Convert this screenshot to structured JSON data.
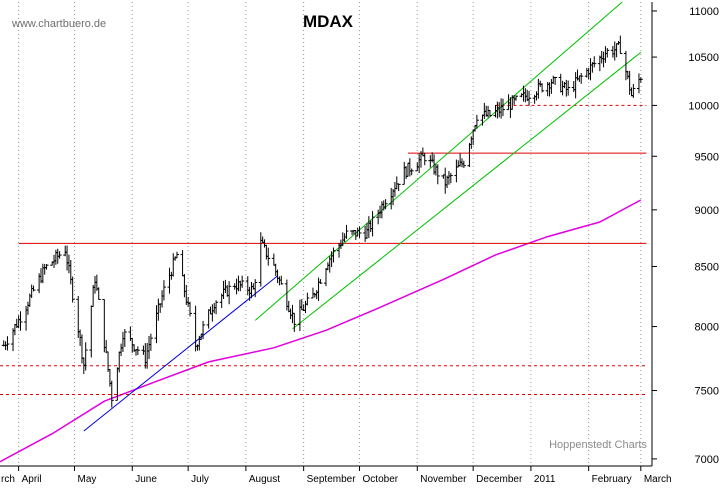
{
  "chart_data": {
    "type": "ohlc",
    "title": "MDAX",
    "watermark": "www.chartbuero.de",
    "credit": "Hoppenstedt Charts",
    "xlabel": "",
    "ylabel": "",
    "y_scale": "log",
    "ylim": [
      6950,
      11100
    ],
    "y_ticks": [
      7000,
      7500,
      8000,
      8500,
      9000,
      9500,
      10000,
      10500,
      11000
    ],
    "y_axis_position": "right",
    "x_tick_labels": [
      "rch",
      "April",
      "May",
      "June",
      "July",
      "August",
      "September",
      "October",
      "November",
      "December",
      "2011",
      "February",
      "March"
    ],
    "grid": "vertical dotted monthly separators",
    "series": [
      {
        "name": "",
        "style": "ohlc-bars",
        "color": "#000000",
        "values": [
          {
            "x": "2010-03-24",
            "close": 7850
          },
          {
            "x": "2010-04-01",
            "close": 8050
          },
          {
            "x": "2010-04-15",
            "close": 8480
          },
          {
            "x": "2010-04-26",
            "close": 8650
          },
          {
            "x": "2010-05-06",
            "close": 7700
          },
          {
            "x": "2010-05-12",
            "close": 8400
          },
          {
            "x": "2010-05-21",
            "close": 7450
          },
          {
            "x": "2010-05-27",
            "close": 7950
          },
          {
            "x": "2010-06-08",
            "close": 7750
          },
          {
            "x": "2010-06-18",
            "close": 8300
          },
          {
            "x": "2010-06-25",
            "close": 8600
          },
          {
            "x": "2010-07-05",
            "close": 7850
          },
          {
            "x": "2010-07-15",
            "close": 8200
          },
          {
            "x": "2010-07-26",
            "close": 8350
          },
          {
            "x": "2010-08-05",
            "close": 8300
          },
          {
            "x": "2010-08-09",
            "close": 8700
          },
          {
            "x": "2010-08-16",
            "close": 8500
          },
          {
            "x": "2010-08-27",
            "close": 8050
          },
          {
            "x": "2010-09-06",
            "close": 8250
          },
          {
            "x": "2010-09-14",
            "close": 8550
          },
          {
            "x": "2010-09-24",
            "close": 8780
          },
          {
            "x": "2010-10-05",
            "close": 8800
          },
          {
            "x": "2010-10-15",
            "close": 9100
          },
          {
            "x": "2010-10-25",
            "close": 9350
          },
          {
            "x": "2010-11-05",
            "close": 9500
          },
          {
            "x": "2010-11-16",
            "close": 9250
          },
          {
            "x": "2010-11-26",
            "close": 9450
          },
          {
            "x": "2010-12-03",
            "close": 9900
          },
          {
            "x": "2010-12-10",
            "close": 9900
          },
          {
            "x": "2010-12-20",
            "close": 10000
          },
          {
            "x": "2011-01-03",
            "close": 10150
          },
          {
            "x": "2011-01-12",
            "close": 10250
          },
          {
            "x": "2011-01-21",
            "close": 10150
          },
          {
            "x": "2011-01-31",
            "close": 10350
          },
          {
            "x": "2011-02-10",
            "close": 10550
          },
          {
            "x": "2011-02-18",
            "close": 10600
          },
          {
            "x": "2011-02-24",
            "close": 10100
          },
          {
            "x": "2011-03-01",
            "close": 10300
          }
        ]
      },
      {
        "name": "",
        "style": "line",
        "color": "#e000e0",
        "values": [
          {
            "x": "2010-03-22",
            "y": 6980
          },
          {
            "x": "2010-04-19",
            "y": 7180
          },
          {
            "x": "2010-05-17",
            "y": 7420
          },
          {
            "x": "2010-06-14",
            "y": 7570
          },
          {
            "x": "2010-07-12",
            "y": 7720
          },
          {
            "x": "2010-08-16",
            "y": 7830
          },
          {
            "x": "2010-09-13",
            "y": 7970
          },
          {
            "x": "2010-10-11",
            "y": 8150
          },
          {
            "x": "2010-11-15",
            "y": 8390
          },
          {
            "x": "2010-12-13",
            "y": 8600
          },
          {
            "x": "2011-01-10",
            "y": 8760
          },
          {
            "x": "2011-02-07",
            "y": 8890
          },
          {
            "x": "2011-03-01",
            "y": 9090
          }
        ]
      }
    ],
    "reference_lines": [
      {
        "kind": "horizontal",
        "style": "solid",
        "color": "#e00000",
        "y": 8700,
        "from": "2010-04-01",
        "to": "2011-03-04"
      },
      {
        "kind": "horizontal",
        "style": "solid",
        "color": "#e00000",
        "y": 9530,
        "from": "2010-10-27",
        "to": "2011-03-04"
      },
      {
        "kind": "horizontal",
        "style": "dashed",
        "color": "#e00000",
        "y": 10000,
        "from": "2010-12-13",
        "to": "2011-03-04"
      },
      {
        "kind": "horizontal",
        "style": "dashed",
        "color": "#e00000",
        "y": 7690,
        "from": "2010-03-22",
        "to": "2011-03-04"
      },
      {
        "kind": "horizontal",
        "style": "dashed",
        "color": "#e00000",
        "y": 7470,
        "from": "2010-03-22",
        "to": "2011-03-04"
      }
    ],
    "trend_lines": [
      {
        "color": "#0000e0",
        "from": {
          "x": "2010-05-06",
          "y": 7200
        },
        "to": {
          "x": "2010-08-18",
          "y": 8420
        }
      },
      {
        "color": "#00c000",
        "from": {
          "x": "2010-08-06",
          "y": 8050
        },
        "to": {
          "x": "2011-02-19",
          "y": 11100
        }
      },
      {
        "color": "#00c000",
        "from": {
          "x": "2010-08-26",
          "y": 7980
        },
        "to": {
          "x": "2011-03-01",
          "y": 10550
        }
      }
    ]
  }
}
